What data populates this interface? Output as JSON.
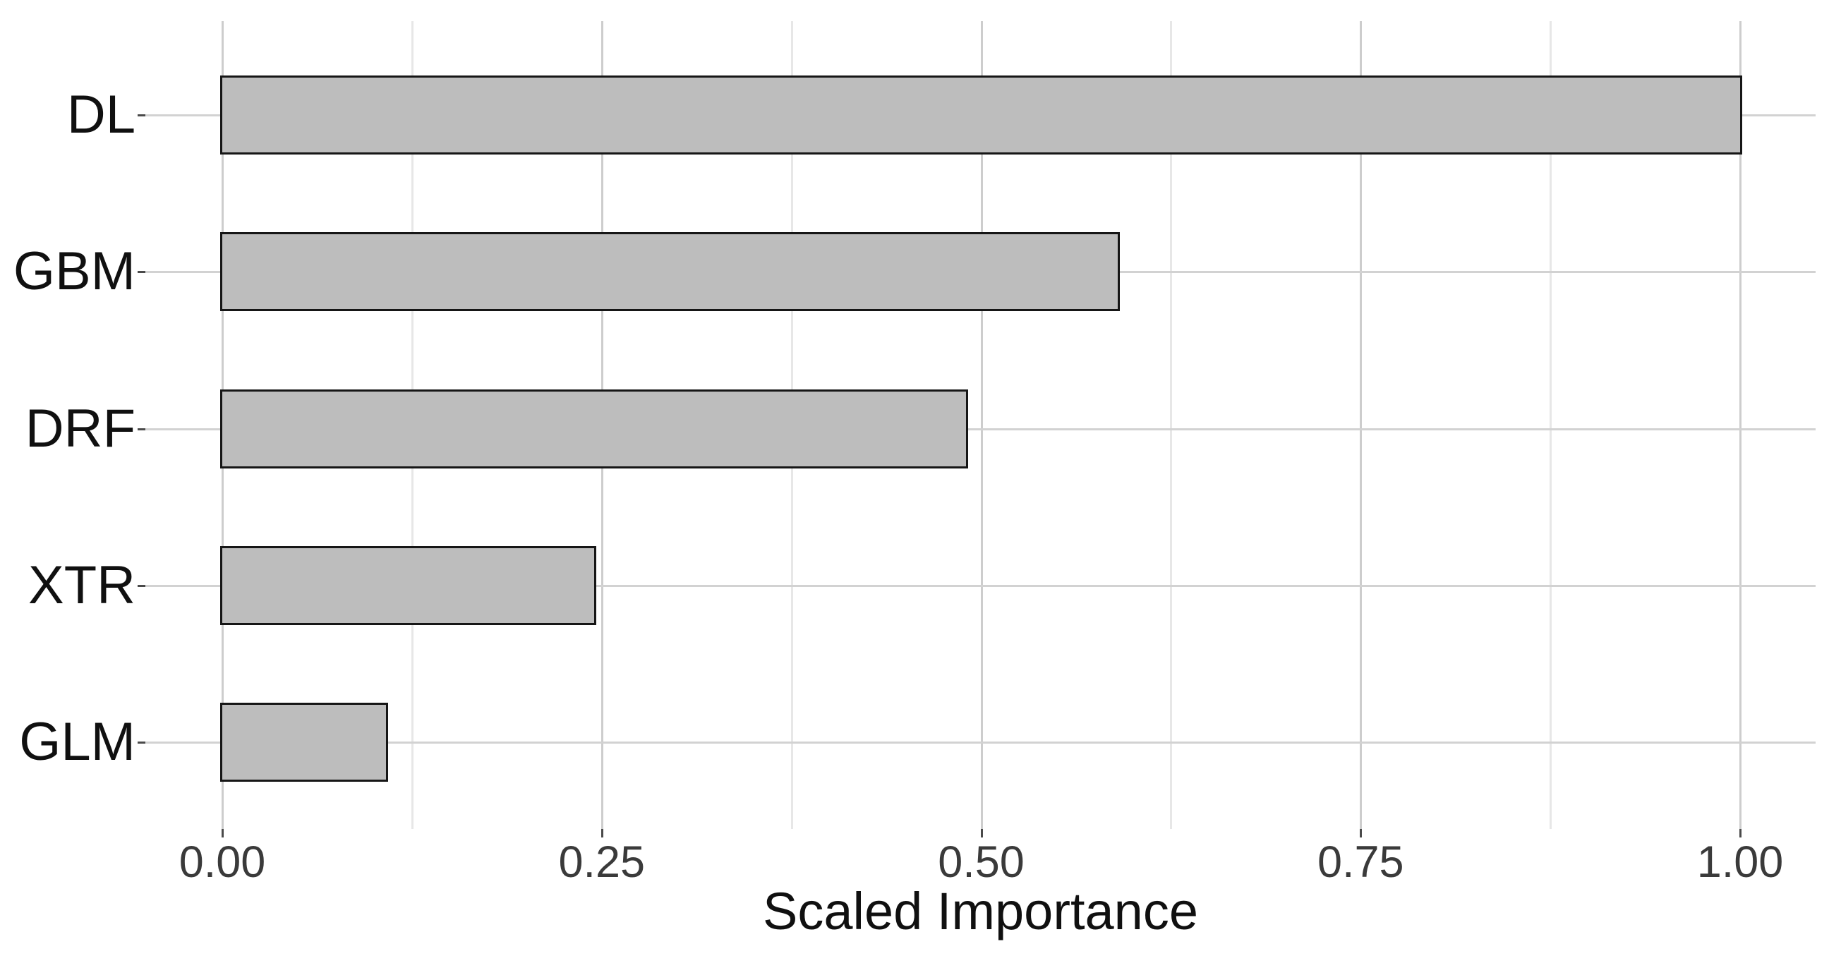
{
  "chart_data": {
    "type": "bar",
    "orientation": "horizontal",
    "title": "",
    "xlabel": "Scaled Importance",
    "ylabel": "",
    "categories": [
      "DL",
      "GBM",
      "DRF",
      "XTR",
      "GLM"
    ],
    "values": [
      1.0,
      0.59,
      0.49,
      0.245,
      0.108
    ],
    "xlim": [
      0,
      1
    ],
    "x_ticks": [
      0,
      0.25,
      0.5,
      0.75,
      1
    ],
    "x_tick_labels": [
      "0.00",
      "0.25",
      "0.50",
      "0.75",
      "1.00"
    ],
    "x_minor_ticks": [
      0.125,
      0.375,
      0.625,
      0.875
    ],
    "grid": "vertical major and minor gridlines; one horizontal gridline per category row",
    "legend_position": "none",
    "colors": {
      "background": "#ffffff",
      "bar_fill": "#bdbdbd",
      "bar_border": "#161616",
      "major_gridline": "#cdcdcd",
      "minor_gridline": "#e7e7e7",
      "category_gridline": "#d2d2d2",
      "axis_tick": "#4a4a4a",
      "tick_label": "#3a3a3a",
      "category_label": "#101010",
      "axis_title": "#101010"
    }
  }
}
